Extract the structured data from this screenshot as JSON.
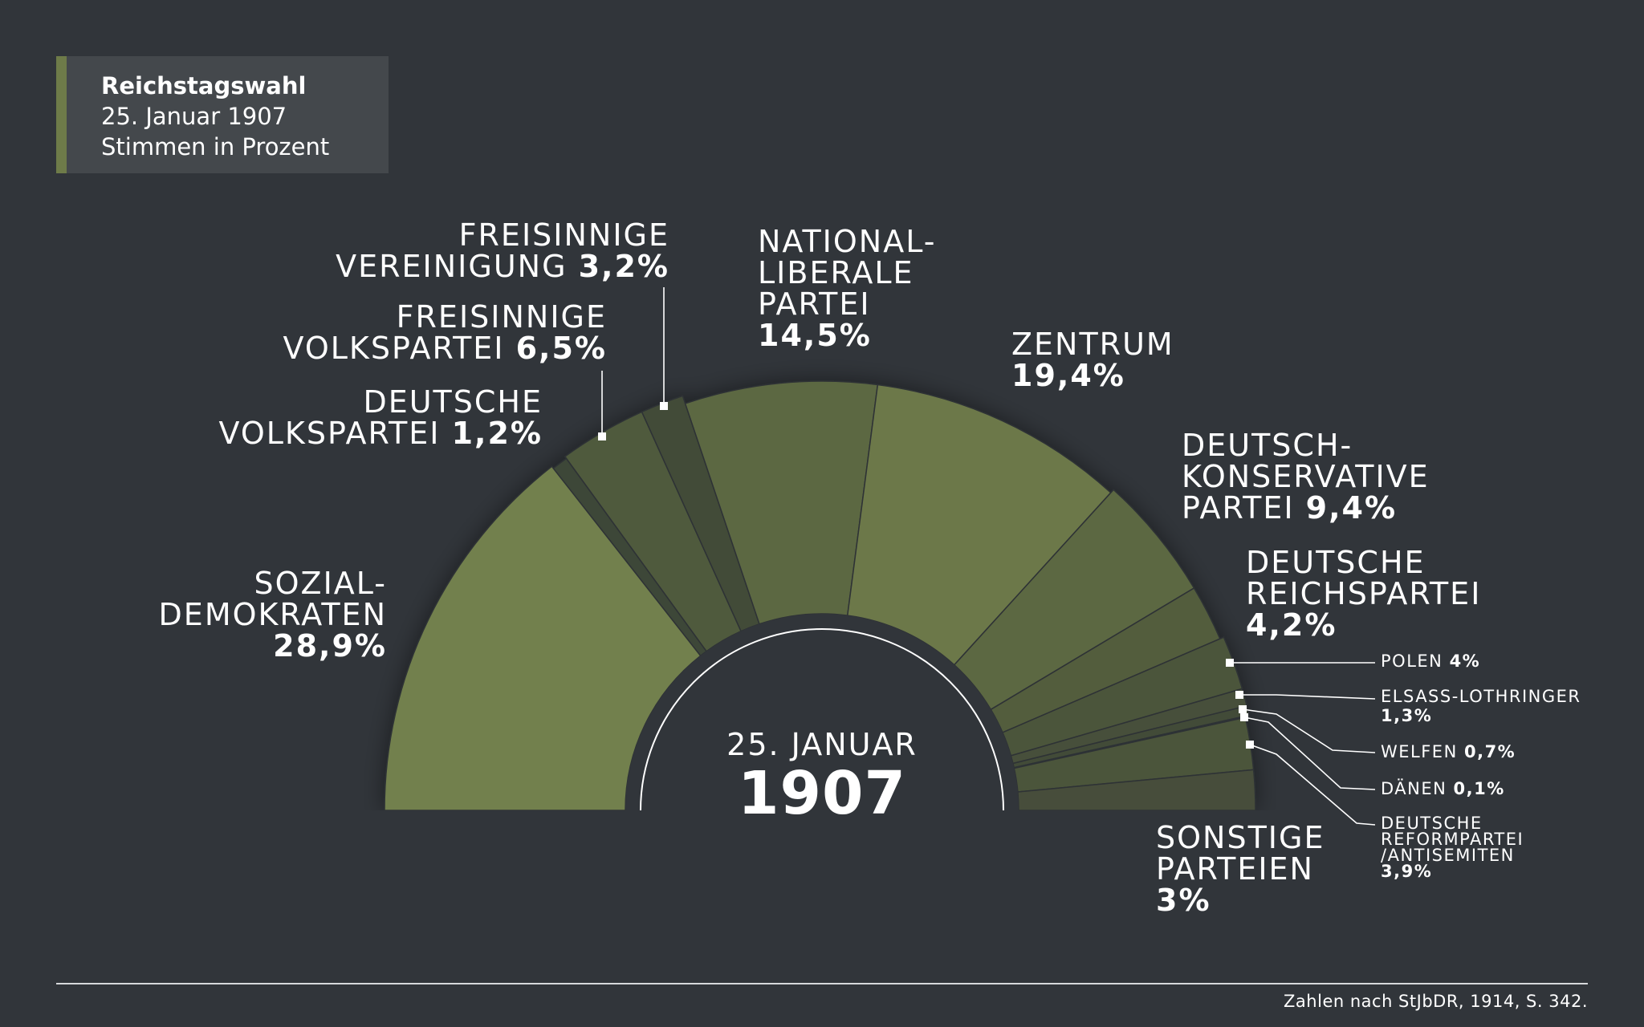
{
  "title": {
    "line1": "Reichstagswahl",
    "line2": "25. Januar 1907",
    "line3": "Stimmen in Prozent"
  },
  "center": {
    "line1": "25. JANUAR",
    "line2": "1907"
  },
  "source": "Zahlen nach StJbDR, 1914, S. 342.",
  "colors": {
    "background": "#31353a",
    "title_box": "#44484c",
    "accent": "#6e7b49",
    "separator": "#2d3135"
  },
  "chart_data": {
    "type": "pie",
    "subtype": "half-donut",
    "title": "Reichstagswahl 25. Januar 1907 Stimmen in Prozent",
    "unit": "%",
    "slices": [
      {
        "id": "spd",
        "name_lines": [
          "SOZIAL-",
          "DEMOKRATEN"
        ],
        "label": "28,9%",
        "value": 28.9,
        "color": "#72804d"
      },
      {
        "id": "dvp",
        "name_lines": [
          "DEUTSCHE",
          "VOLKSPARTEI"
        ],
        "label": "1,2%",
        "value": 1.2,
        "color": "#3e4638"
      },
      {
        "id": "fvp",
        "name_lines": [
          "FREISINNIGE",
          "VOLKSPARTEI"
        ],
        "label": "6,5%",
        "value": 6.5,
        "color": "#4f5a3c"
      },
      {
        "id": "fvg",
        "name_lines": [
          "FREISINNIGE",
          "VEREINIGUNG"
        ],
        "label": "3,2%",
        "value": 3.2,
        "color": "#434b39"
      },
      {
        "id": "nlp",
        "name_lines": [
          "NATIONAL-",
          "LIBERALE",
          "PARTEI"
        ],
        "label": "14,5%",
        "value": 14.5,
        "color": "#5c6742"
      },
      {
        "id": "zen",
        "name_lines": [
          "ZENTRUM"
        ],
        "label": "19,4%",
        "value": 19.4,
        "color": "#6c7849"
      },
      {
        "id": "dkp",
        "name_lines": [
          "DEUTSCH-",
          "KONSERVATIVE",
          "PARTEI"
        ],
        "label": "9,4%",
        "value": 9.4,
        "color": "#5c6742"
      },
      {
        "id": "drp",
        "name_lines": [
          "DEUTSCHE",
          "REICHSPARTEI"
        ],
        "label": "4,2%",
        "value": 4.2,
        "color": "#535d3e"
      },
      {
        "id": "pol",
        "name_lines": [
          "POLEN"
        ],
        "label": "4%",
        "value": 4.0,
        "color": "#4b543b"
      },
      {
        "id": "els",
        "name_lines": [
          "ELSASS-LOTHRINGER"
        ],
        "label": "1,3%",
        "value": 1.3,
        "color": "#47503a"
      },
      {
        "id": "wel",
        "name_lines": [
          "WELFEN"
        ],
        "label": "0,7%",
        "value": 0.7,
        "color": "#434b39"
      },
      {
        "id": "dan",
        "name_lines": [
          "DÄNEN"
        ],
        "label": "0,1%",
        "value": 0.1,
        "color": "#434b39"
      },
      {
        "id": "dref",
        "name_lines": [
          "DEUTSCHE",
          "REFORMPARTEI",
          "/ANTISEMITEN"
        ],
        "label": "3,9%",
        "value": 3.9,
        "color": "#4b543b"
      },
      {
        "id": "son",
        "name_lines": [
          "SONSTIGE",
          "PARTEIEN"
        ],
        "label": "3%",
        "value": 3.0,
        "color": "#464e3a"
      }
    ]
  }
}
